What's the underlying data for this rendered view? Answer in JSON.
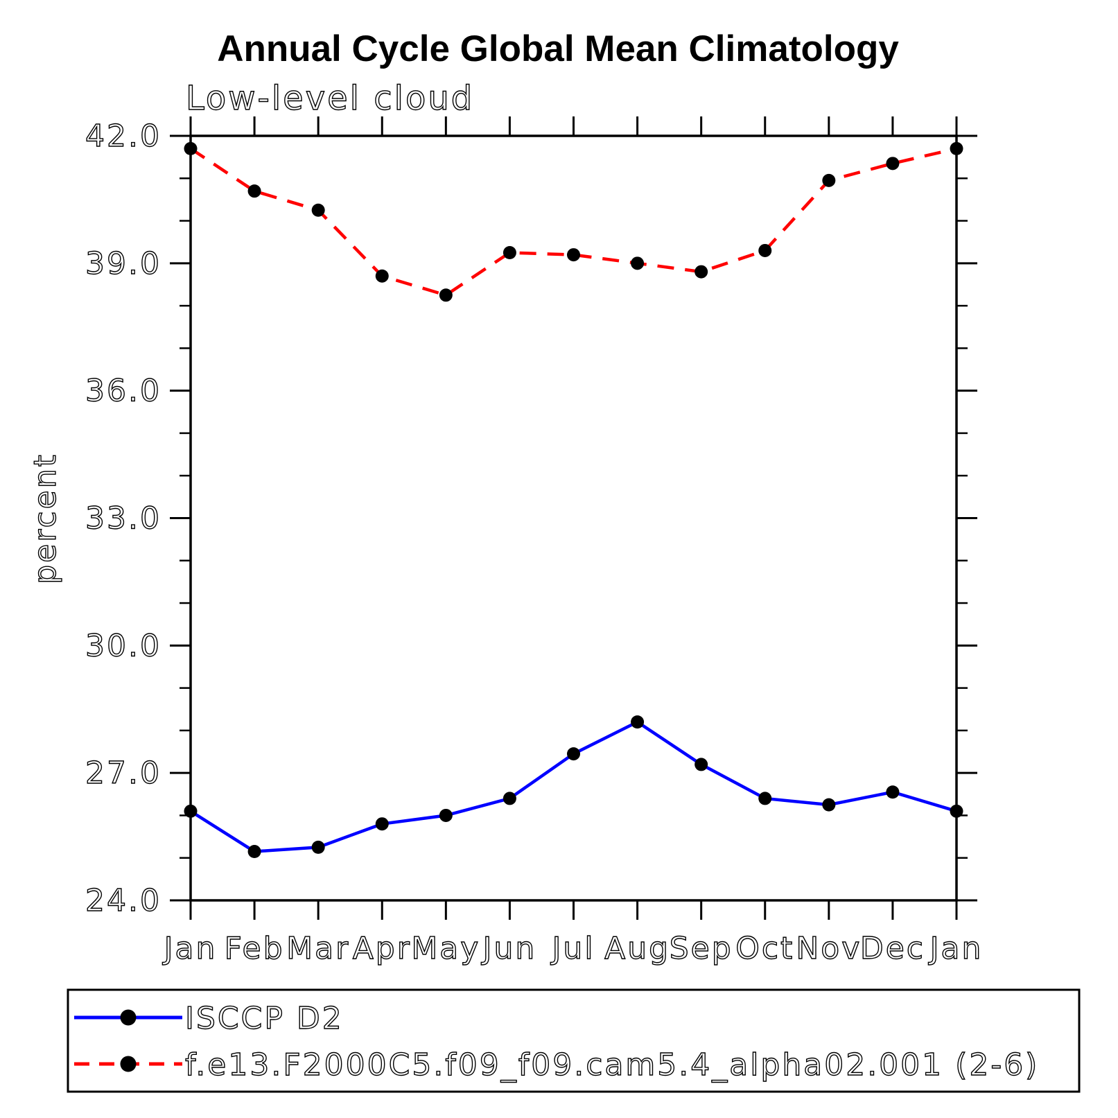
{
  "page": {
    "background": "#ffffff",
    "frame_color": "#000000"
  },
  "header": {
    "title": "Annual Cycle Global Mean Climatology",
    "subtitle": "Low-level cloud"
  },
  "chart_data": {
    "type": "line",
    "title": "Annual Cycle Global Mean Climatology",
    "subtitle": "Low-level cloud",
    "xlabel": "",
    "ylabel": "percent",
    "categories": [
      "Jan",
      "Feb",
      "Mar",
      "Apr",
      "May",
      "Jun",
      "Jul",
      "Aug",
      "Sep",
      "Oct",
      "Nov",
      "Dec",
      "Jan"
    ],
    "ylim": [
      24.0,
      42.0
    ],
    "ytick_major": [
      24,
      27,
      30,
      33,
      36,
      39,
      42
    ],
    "ytick_major_labels": [
      "24.0",
      "27.0",
      "30.0",
      "33.0",
      "36.0",
      "39.0",
      "42.0"
    ],
    "ytick_minor_step": 1.0,
    "grid": false,
    "legend_position": "bottom",
    "marker": "filled-circle",
    "marker_color": "#000000",
    "series": [
      {
        "name": "ISCCP D2",
        "color": "#0000ff",
        "style": "solid",
        "values": [
          26.1,
          25.15,
          25.25,
          25.8,
          26.0,
          26.4,
          27.45,
          28.2,
          27.2,
          26.4,
          26.25,
          26.55,
          26.1
        ]
      },
      {
        "name": "f.e13.F2000C5.f09_f09.cam5.4_alpha02.001 (2-6)",
        "color": "#ff0000",
        "style": "dashed",
        "values": [
          41.7,
          40.7,
          40.25,
          38.7,
          38.25,
          39.25,
          39.2,
          39.0,
          38.8,
          39.3,
          40.95,
          41.35,
          41.7
        ]
      }
    ]
  }
}
